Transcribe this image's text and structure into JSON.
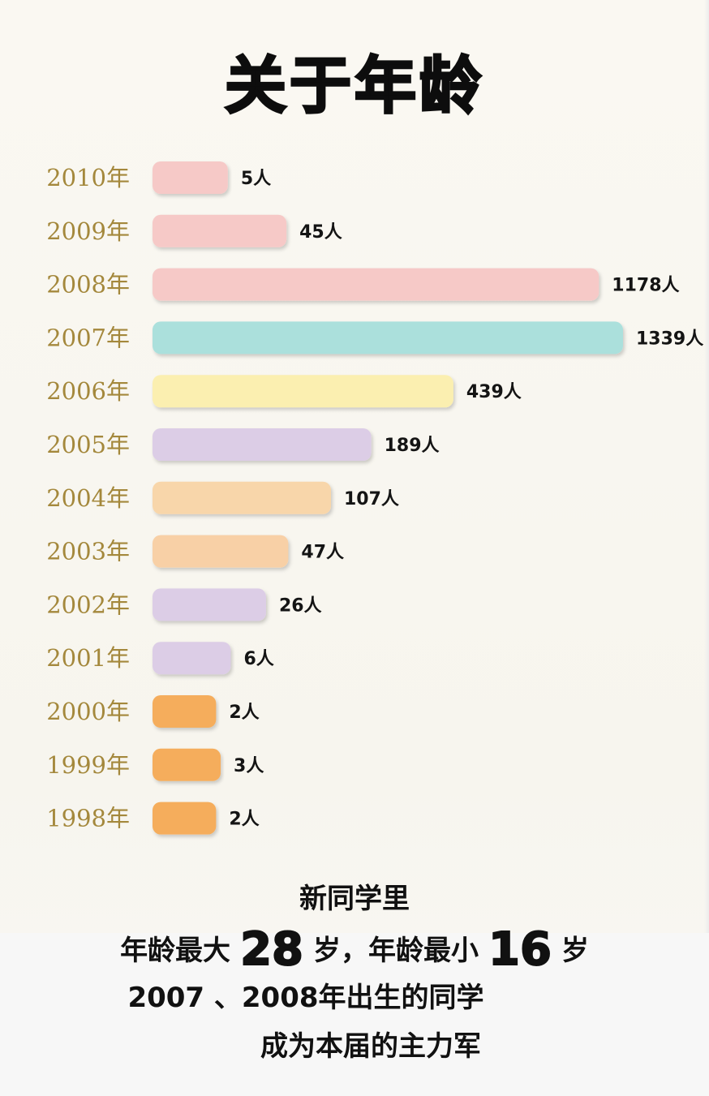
{
  "chart_data": {
    "type": "bar",
    "orientation": "horizontal",
    "title": "关于年龄",
    "categories": [
      "2010年",
      "2009年",
      "2008年",
      "2007年",
      "2006年",
      "2005年",
      "2004年",
      "2003年",
      "2002年",
      "2001年",
      "2000年",
      "1999年",
      "1998年"
    ],
    "values": [
      5,
      45,
      1178,
      1339,
      439,
      189,
      107,
      47,
      26,
      6,
      2,
      3,
      2
    ],
    "value_labels": [
      "5人",
      "45人",
      "1178人",
      "1339人",
      "439人",
      "189人",
      "107人",
      "47人",
      "26人",
      "6人",
      "2人",
      "3人",
      "2人"
    ],
    "bar_colors": [
      "#f6c9c7",
      "#f6c9c7",
      "#f6c9c7",
      "#abe0dc",
      "#fbefb0",
      "#dccde6",
      "#f8d6aa",
      "#f8d0a6",
      "#dccde6",
      "#dccde6",
      "#f5ad5b",
      "#f5ad5b",
      "#f5ad5b"
    ],
    "year_label_color": "#a4883c",
    "grid": false,
    "legend": "none"
  },
  "footer": {
    "line1": "新同学里",
    "line2_prefix": "年龄最大",
    "max_age": "28",
    "line2_mid": "岁，年龄最小",
    "min_age": "16",
    "line2_suffix": "岁",
    "line3": "2007 、2008年出生的同学",
    "line4": "成为本届的主力军"
  }
}
